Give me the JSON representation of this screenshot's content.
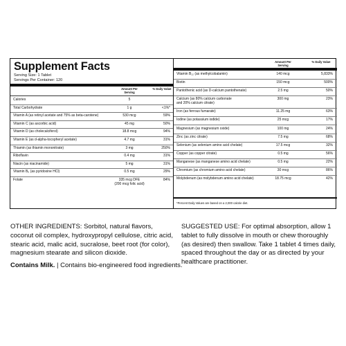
{
  "title": "Supplement Facts",
  "serving_size": "Serving Size: 1 Tablet",
  "servings_per_container": "Servings Per Container: 120",
  "header": {
    "amount": "Amount Per Serving",
    "dv": "% Daily Value"
  },
  "left_rows": [
    {
      "name": "Calories",
      "amount": "5",
      "dv": ""
    },
    {
      "name": "Total Carbohydrate",
      "amount": "1 g",
      "dv": "<1%*"
    },
    {
      "name": "Vitamin A (as retinyl acetate and 75% as beta-carotene)",
      "amount": "530 mcg",
      "dv": "59%"
    },
    {
      "name": "Vitamin C (as ascorbic acid)",
      "amount": "45 mg",
      "dv": "50%"
    },
    {
      "name": "Vitamin D (as cholecalciferol)",
      "amount": "18.8 mcg",
      "dv": "94%"
    },
    {
      "name": "Vitamin E (as d-alpha-tocopheryl acetate)",
      "amount": "4.7 mg",
      "dv": "31%"
    },
    {
      "name": "Thiamin (as thiamin mononitrate)",
      "amount": "3 mg",
      "dv": "250%"
    },
    {
      "name": "Riboflavin",
      "amount": "0.4 mg",
      "dv": "31%"
    },
    {
      "name": "Niacin (as niacinamide)",
      "amount": "5 mg",
      "dv": "31%"
    },
    {
      "name": "Vitamin B₆ (as pyridoxine HCl)",
      "amount": "0.5 mg",
      "dv": "29%"
    },
    {
      "name": "Folate",
      "amount": "335 mcg DFE",
      "amount2": "(200 mcg folic acid)",
      "dv": "84%"
    }
  ],
  "right_rows": [
    {
      "name": "Vitamin B₁₂ (as methylcobalamin)",
      "amount": "140 mcg",
      "dv": "5,833%"
    },
    {
      "name": "Biotin",
      "amount": "150 mcg",
      "dv": "500%"
    },
    {
      "name": "Pantothenic acid (as D-calcium pantothenate)",
      "amount": "2.5 mg",
      "dv": "50%"
    },
    {
      "name": "Calcium (as 80% calcium carbonate",
      "name2": "and 20% calcium citrate)",
      "amount": "300 mg",
      "dv": "23%"
    },
    {
      "name": "Iron (as ferrous fumarate)",
      "amount": "11.25 mg",
      "dv": "63%"
    },
    {
      "name": "Iodine (as potassium iodide)",
      "amount": "25 mcg",
      "dv": "17%"
    },
    {
      "name": "Magnesium (as magnesium oxide)",
      "amount": "100 mg",
      "dv": "24%"
    },
    {
      "name": "Zinc (as zinc citrate)",
      "amount": "7.5 mg",
      "dv": "68%"
    },
    {
      "name": "Selenium (as selenium amino acid chelate)",
      "amount": "17.5 mcg",
      "dv": "32%"
    },
    {
      "name": "Copper (as copper citrate)",
      "amount": "0.5 mg",
      "dv": "56%"
    },
    {
      "name": "Manganese (as manganese amino acid chelate)",
      "amount": "0.5 mg",
      "dv": "22%"
    },
    {
      "name": "Chromium (as chromium amino acid chelate)",
      "amount": "30 mcg",
      "dv": "86%"
    },
    {
      "name": "Molybdenum (as molybdenum amino acid chelate)",
      "amount": "18.75 mcg",
      "dv": "42%"
    }
  ],
  "footnote": "*Percent Daily Values are based on a 2,000 calorie diet.",
  "other_ingredients": "OTHER INGREDIENTS: Sorbitol, natural flavors, coconut oil complex, hydroxypropyl cellulose, citric acid, stearic acid, malic acid, sucralose, beet root (for color), magnesium stearate and silicon dioxide.",
  "contains": "Contains Milk.",
  "contains_rest": " | Contains bio-engineered food ingredients.",
  "suggested_use": "SUGGESTED USE: For optimal absorption, allow 1 tablet to fully dissolve in mouth or chew thoroughly (as desired) then swallow. Take 1 tablet 4 times daily, spaced throughout the day or as directed by your healthcare practitioner."
}
